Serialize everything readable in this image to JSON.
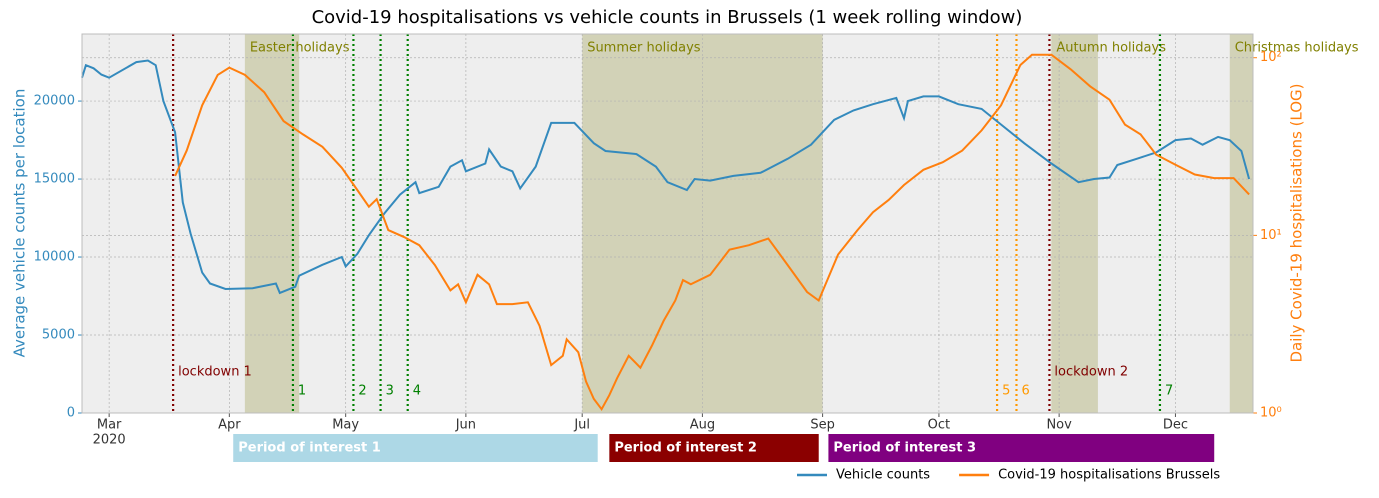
{
  "chart_data": {
    "type": "line",
    "title": "Covid-19 hospitalisations vs vehicle counts in Brussels (1 week rolling window)",
    "y_label": "Average vehicle counts per location",
    "y2_label": "Daily Covid-19 hospitalisations (LOG)",
    "x_year_label": "2020",
    "xlim": [
      -7,
      295
    ],
    "xticks": [
      {
        "value": 0,
        "label": "Mar"
      },
      {
        "value": 31,
        "label": "Apr"
      },
      {
        "value": 61,
        "label": "May"
      },
      {
        "value": 92,
        "label": "Jun"
      },
      {
        "value": 122,
        "label": "Jul"
      },
      {
        "value": 153,
        "label": "Aug"
      },
      {
        "value": 184,
        "label": "Sep"
      },
      {
        "value": 214,
        "label": "Oct"
      },
      {
        "value": 245,
        "label": "Nov"
      },
      {
        "value": 275,
        "label": "Dec"
      }
    ],
    "ylim": [
      0,
      24300
    ],
    "yticks": [
      0,
      5000,
      10000,
      15000,
      20000
    ],
    "y2lim": [
      1,
      136
    ],
    "y2_log": true,
    "y2ticks": [
      {
        "value": 1,
        "label": "10⁰"
      },
      {
        "value": 10,
        "label": "10¹"
      },
      {
        "value": 100,
        "label": "10²"
      }
    ],
    "grid": true,
    "legend": "bottom-right",
    "series": [
      {
        "name": "Vehicle counts",
        "color": "#348abd",
        "x": [
          -7,
          -6,
          -4,
          -2,
          0,
          7,
          10,
          12,
          14,
          17,
          19,
          21,
          24,
          26,
          30,
          37,
          43,
          44,
          48,
          49,
          55,
          60,
          61,
          64,
          67,
          71,
          75,
          79,
          80,
          85,
          88,
          91,
          92,
          97,
          98,
          101,
          104,
          106,
          110,
          114,
          120,
          125,
          128,
          136,
          141,
          144,
          149,
          151,
          155,
          161,
          168,
          175,
          181,
          187,
          192,
          197,
          203,
          205,
          206,
          210,
          214,
          219,
          225,
          230,
          236,
          243,
          250,
          254,
          258,
          260,
          265,
          270,
          275,
          279,
          282,
          286,
          289,
          292,
          294
        ],
        "values": [
          21500,
          22300,
          22100,
          21700,
          21500,
          22500,
          22600,
          22300,
          20000,
          18000,
          13500,
          11500,
          9000,
          8300,
          7950,
          8000,
          8300,
          7700,
          8100,
          8800,
          9500,
          10000,
          9400,
          10200,
          11400,
          12800,
          14000,
          14800,
          14100,
          14500,
          15800,
          16200,
          15500,
          16000,
          16900,
          15800,
          15500,
          14400,
          15800,
          18600,
          18600,
          17300,
          16800,
          16600,
          15800,
          14800,
          14300,
          15000,
          14900,
          15200,
          15400,
          16300,
          17200,
          18800,
          19400,
          19800,
          20200,
          18900,
          20000,
          20300,
          20300,
          19800,
          19500,
          18500,
          17300,
          16000,
          14800,
          15000,
          15100,
          15900,
          16300,
          16700,
          17500,
          17600,
          17200,
          17700,
          17500,
          16800,
          15000
        ]
      },
      {
        "name": "Covid-19 hospitalisations Brussels",
        "color": "#ff7f0e",
        "axis": "y2",
        "x": [
          17,
          20,
          24,
          28,
          31,
          35,
          40,
          45,
          50,
          55,
          60,
          64,
          67,
          69,
          72,
          76,
          80,
          84,
          88,
          90,
          92,
          95,
          98,
          100,
          104,
          108,
          111,
          114,
          117,
          118,
          121,
          123,
          125,
          127,
          129,
          131,
          134,
          137,
          140,
          143,
          146,
          148,
          150,
          155,
          160,
          165,
          170,
          175,
          180,
          183,
          188,
          193,
          197,
          201,
          205,
          210,
          215,
          220,
          225,
          230,
          235,
          238,
          243,
          248,
          253,
          258,
          262,
          266,
          270,
          275,
          280,
          285,
          290,
          294
        ],
        "values": [
          21.6,
          30,
          54,
          80,
          88,
          80,
          64,
          44,
          37,
          31.5,
          24,
          18,
          14.5,
          16,
          10.7,
          9.8,
          8.8,
          6.8,
          4.9,
          5.3,
          4.2,
          6.0,
          5.3,
          4.1,
          4.1,
          4.2,
          3.1,
          1.86,
          2.1,
          2.6,
          2.2,
          1.5,
          1.2,
          1.05,
          1.26,
          1.57,
          2.1,
          1.8,
          2.4,
          3.3,
          4.3,
          5.6,
          5.3,
          6.0,
          8.3,
          8.8,
          9.6,
          6.8,
          4.8,
          4.3,
          7.8,
          10.7,
          13.5,
          15.8,
          19.2,
          23.4,
          25.8,
          30,
          39,
          54,
          91,
          104,
          104,
          86,
          69,
          58,
          42,
          37,
          28.5,
          25,
          22,
          21,
          21,
          17
        ]
      }
    ],
    "spans": [
      {
        "label": "Easter holidays",
        "start": 35,
        "end": 49
      },
      {
        "label": "Summer holidays",
        "start": 122,
        "end": 184
      },
      {
        "label": "Autumn holidays",
        "start": 243,
        "end": 255
      },
      {
        "label": "Christmas holidays",
        "start": 289,
        "end": 295
      }
    ],
    "vlines": [
      {
        "label": "lockdown 1",
        "x": 16.5,
        "color": "#800000"
      },
      {
        "label": "1",
        "x": 47.4,
        "color": "#008000"
      },
      {
        "label": "2",
        "x": 63,
        "color": "#008000"
      },
      {
        "label": "3",
        "x": 70,
        "color": "#008000"
      },
      {
        "label": "4",
        "x": 77,
        "color": "#008000"
      },
      {
        "label": "5",
        "x": 229,
        "color": "#ff9900"
      },
      {
        "label": "6",
        "x": 234,
        "color": "#ff9900"
      },
      {
        "label": "lockdown 2",
        "x": 242.5,
        "color": "#800000"
      },
      {
        "label": "7",
        "x": 271,
        "color": "#008000"
      }
    ],
    "periods": [
      {
        "label": "Period of interest 1",
        "start": 32,
        "end": 126,
        "color": "#add8e6"
      },
      {
        "label": "Period of interest 2",
        "start": 129,
        "end": 183,
        "color": "#8b0000"
      },
      {
        "label": "Period of interest 3",
        "start": 185.5,
        "end": 285,
        "color": "#800080"
      }
    ]
  }
}
